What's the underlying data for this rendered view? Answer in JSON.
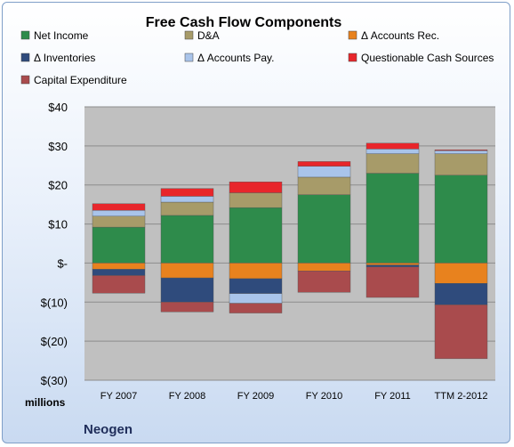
{
  "chart_data": {
    "type": "bar",
    "stacked": true,
    "title": "Free Cash Flow Components",
    "categories": [
      "FY 2007",
      "FY 2008",
      "FY 2009",
      "FY 2010",
      "FY 2011",
      "TTM 2-2012"
    ],
    "ylabel": "",
    "yunit_label": "millions",
    "ylim": [
      -30,
      40
    ],
    "yticks": [
      {
        "value": 40,
        "label": "$40"
      },
      {
        "value": 30,
        "label": "$30"
      },
      {
        "value": 20,
        "label": "$20"
      },
      {
        "value": 10,
        "label": "$10"
      },
      {
        "value": 0,
        "label": "$-"
      },
      {
        "value": -10,
        "label": "$(10)"
      },
      {
        "value": -20,
        "label": "$(20)"
      },
      {
        "value": -30,
        "label": "$(30)"
      }
    ],
    "grid": true,
    "legend_position": "top",
    "series": [
      {
        "name": "Net Income",
        "color": "#2e8b4b",
        "values": [
          9.2,
          12.2,
          14.2,
          17.5,
          23.0,
          22.5
        ]
      },
      {
        "name": "D&A",
        "color": "#a79b69",
        "values": [
          2.8,
          3.4,
          3.8,
          4.5,
          5.0,
          5.5
        ]
      },
      {
        "name": "Δ Accounts Rec.",
        "color": "#e8821e",
        "values": [
          -1.6,
          -3.8,
          -4.0,
          -2.0,
          -0.5,
          -5.2
        ]
      },
      {
        "name": "Δ Inventories",
        "color": "#2f4b7c",
        "values": [
          -1.6,
          -6.2,
          -3.8,
          0.0,
          -0.5,
          -5.5
        ]
      },
      {
        "name": "Δ Accounts Pay.",
        "color": "#a9c4ea",
        "values": [
          1.5,
          1.5,
          -2.5,
          2.8,
          1.2,
          0.8
        ]
      },
      {
        "name": "Questionable Cash Sources",
        "color": "#e8262b",
        "values": [
          1.7,
          2.0,
          2.8,
          1.2,
          1.5,
          0.2
        ]
      },
      {
        "name": "Capital Expenditure",
        "color": "#a94b4d",
        "values": [
          -4.5,
          -2.5,
          -2.5,
          -5.5,
          -7.8,
          -13.8
        ]
      }
    ]
  },
  "company": "Neogen",
  "colors": {
    "plot_background": "#c0c0c0",
    "frame_border": "#7f9fc8"
  }
}
